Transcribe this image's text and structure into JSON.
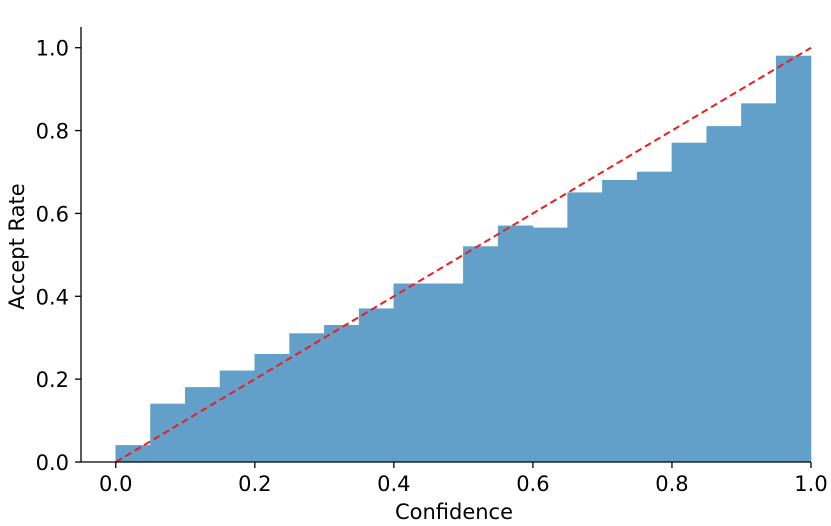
{
  "chart_data": {
    "type": "bar",
    "title": "",
    "xlabel": "Confidence",
    "ylabel": "Accept Rate",
    "xlim": [
      -0.05,
      1.0
    ],
    "ylim": [
      0.0,
      1.05
    ],
    "xticks": [
      "0.0",
      "0.2",
      "0.4",
      "0.6",
      "0.8",
      "1.0"
    ],
    "yticks": [
      "0.0",
      "0.2",
      "0.4",
      "0.6",
      "0.8",
      "1.0"
    ],
    "grid": false,
    "bin_edges": [
      0.0,
      0.05,
      0.1,
      0.15,
      0.2,
      0.25,
      0.3,
      0.35,
      0.4,
      0.45,
      0.5,
      0.55,
      0.6,
      0.65,
      0.7,
      0.75,
      0.8,
      0.85,
      0.9,
      0.95,
      1.0
    ],
    "values": [
      0.04,
      0.14,
      0.18,
      0.22,
      0.26,
      0.31,
      0.33,
      0.37,
      0.43,
      0.43,
      0.52,
      0.57,
      0.565,
      0.65,
      0.68,
      0.7,
      0.77,
      0.81,
      0.865,
      0.98
    ],
    "reference_line": {
      "style": "dashed",
      "color": "#ee1c1c",
      "from": [
        0.0,
        0.0
      ],
      "to": [
        1.0,
        1.0
      ]
    },
    "colors": {
      "bar": "#62a0ca"
    }
  }
}
